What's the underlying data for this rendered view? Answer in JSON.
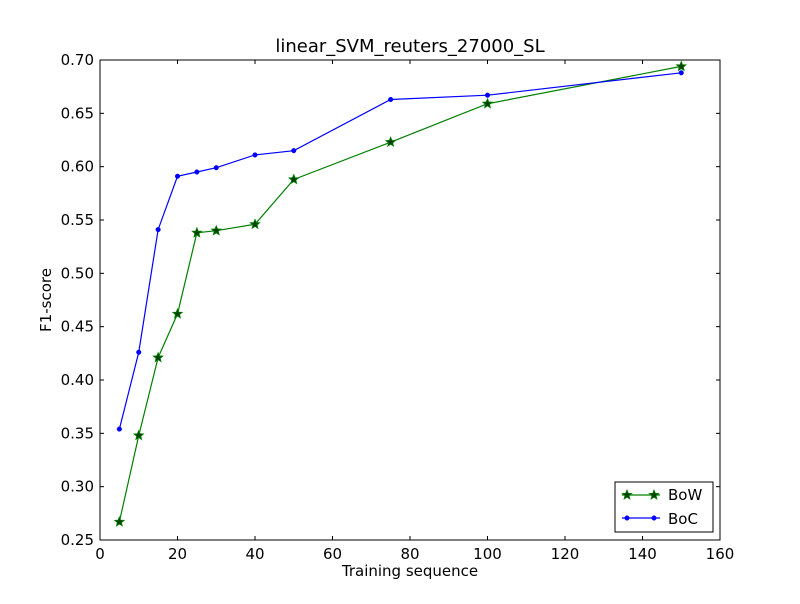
{
  "chart_data": {
    "type": "line",
    "title": "linear_SVM_reuters_27000_SL",
    "xlabel": "Training sequence",
    "ylabel": "F1-score",
    "xlim": [
      0,
      160
    ],
    "ylim": [
      0.25,
      0.7
    ],
    "xticks": [
      0,
      20,
      40,
      60,
      80,
      100,
      120,
      140,
      160
    ],
    "yticks": [
      0.25,
      0.3,
      0.35,
      0.4,
      0.45,
      0.5,
      0.55,
      0.6,
      0.65,
      0.7
    ],
    "xtick_labels": [
      "0",
      "20",
      "40",
      "60",
      "80",
      "100",
      "120",
      "140",
      "160"
    ],
    "ytick_labels": [
      "0.25",
      "0.30",
      "0.35",
      "0.40",
      "0.45",
      "0.50",
      "0.55",
      "0.60",
      "0.65",
      "0.70"
    ],
    "grid": false,
    "legend_position": "lower-right",
    "series": [
      {
        "name": "BoW",
        "color": "#008000",
        "marker": "star",
        "x": [
          5,
          10,
          15,
          20,
          25,
          30,
          40,
          50,
          75,
          100,
          150
        ],
        "y": [
          0.267,
          0.348,
          0.421,
          0.462,
          0.538,
          0.54,
          0.546,
          0.588,
          0.623,
          0.659,
          0.694
        ]
      },
      {
        "name": "BoC",
        "color": "#0000ff",
        "marker": "dot",
        "x": [
          5,
          10,
          15,
          20,
          25,
          30,
          40,
          50,
          75,
          100,
          150
        ],
        "y": [
          0.354,
          0.426,
          0.541,
          0.591,
          0.595,
          0.599,
          0.611,
          0.615,
          0.663,
          0.667,
          0.688
        ]
      }
    ]
  }
}
